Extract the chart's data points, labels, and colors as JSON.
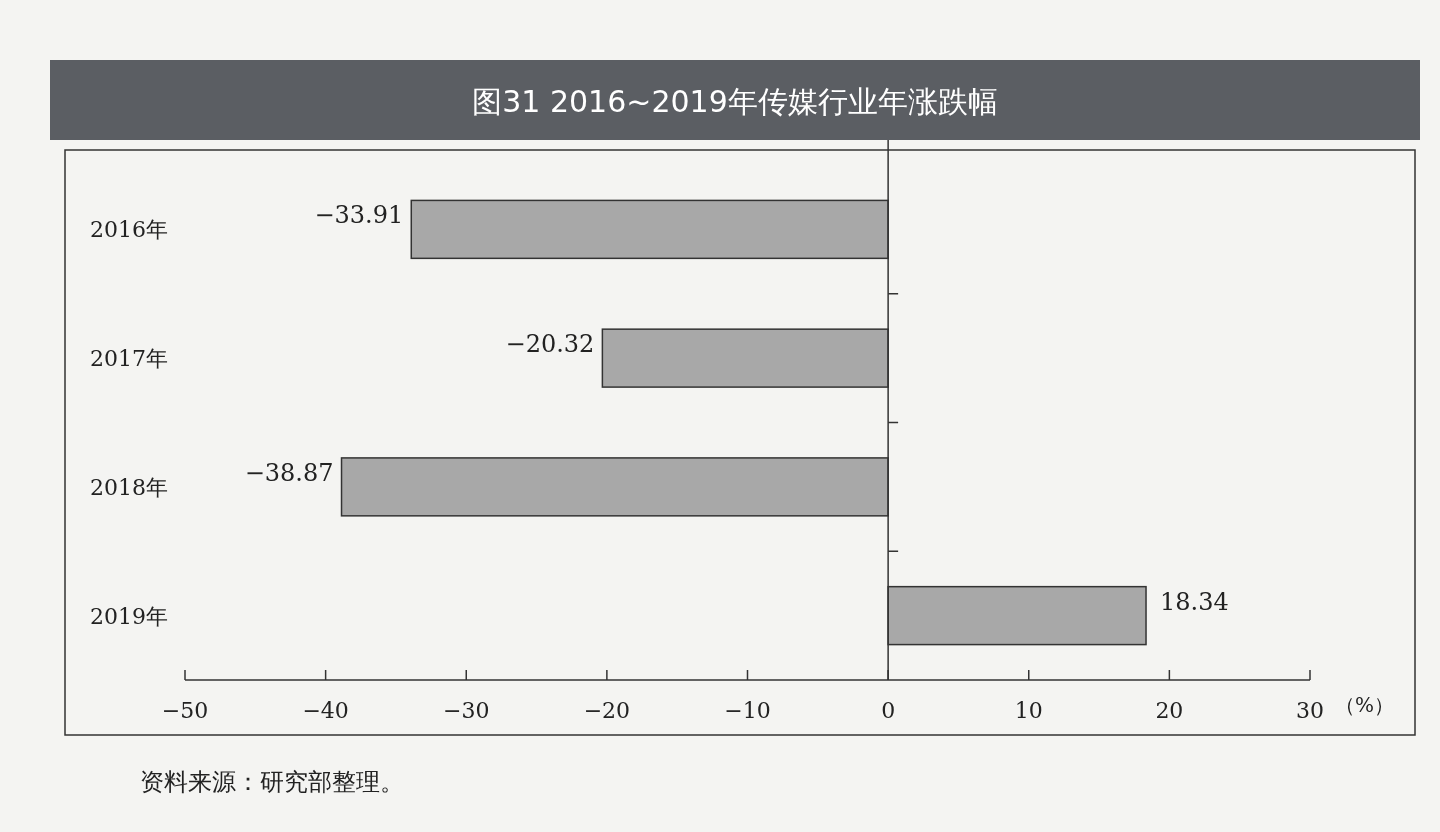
{
  "chart_data": {
    "type": "bar",
    "orientation": "horizontal",
    "title": "图31 2016~2019年传媒行业年涨跌幅",
    "categories": [
      "2016年",
      "2017年",
      "2018年",
      "2019年"
    ],
    "values": [
      -33.91,
      -20.32,
      -38.87,
      18.34
    ],
    "color": "#a8a8a8",
    "xlim": [
      -50,
      30
    ],
    "xticks": [
      -50,
      -40,
      -30,
      -20,
      -10,
      0,
      10,
      20,
      30
    ],
    "xlabel": "（%）",
    "data_labels": true,
    "annotations": [
      "资料来源：研究部整理。"
    ]
  }
}
